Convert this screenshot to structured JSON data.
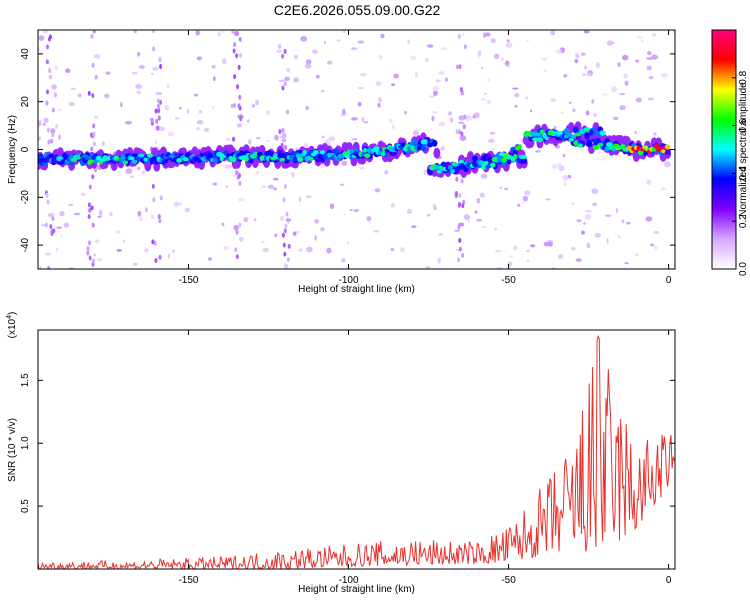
{
  "title": "C2E6.2026.055.09.00.G22",
  "chart_data": [
    {
      "type": "heatmap",
      "xlabel": "Height of straight line (km)",
      "ylabel": "Frequency (Hz)",
      "xlim": [
        -197,
        2
      ],
      "ylim": [
        -50,
        50
      ],
      "xticks": [
        -150,
        -100,
        -50,
        0
      ],
      "yticks": [
        -40,
        -20,
        0,
        20,
        40
      ],
      "colorbar": {
        "label": "Normalized spectral amplitude",
        "range": [
          0,
          1
        ],
        "ticks": [
          "0.0",
          "0.2",
          "0.4",
          "0.6",
          "0.8"
        ],
        "tick_values": [
          0.0,
          0.2,
          0.4,
          0.6,
          0.8
        ],
        "colors": [
          "#ffffff",
          "#d6a8ff",
          "#8000ff",
          "#0000ff",
          "#00ffff",
          "#00ff00",
          "#ffff00",
          "#ff0000",
          "#ff0080"
        ]
      },
      "ridge": [
        {
          "x": -197,
          "y": -4,
          "amp": 0.35
        },
        {
          "x": -180,
          "y": -4,
          "amp": 0.55
        },
        {
          "x": -160,
          "y": -4,
          "amp": 0.45
        },
        {
          "x": -140,
          "y": -3,
          "amp": 0.45
        },
        {
          "x": -120,
          "y": -3,
          "amp": 0.5
        },
        {
          "x": -100,
          "y": -2,
          "amp": 0.5
        },
        {
          "x": -85,
          "y": 0,
          "amp": 0.5
        },
        {
          "x": -73,
          "y": 3,
          "amp": 0.5
        },
        {
          "x": -72,
          "y": -9,
          "amp": 0.5
        },
        {
          "x": -60,
          "y": -5,
          "amp": 0.45
        },
        {
          "x": -50,
          "y": -3,
          "amp": 0.6
        },
        {
          "x": -40,
          "y": 8,
          "amp": 0.5
        },
        {
          "x": -30,
          "y": 3,
          "amp": 0.5
        },
        {
          "x": -20,
          "y": 2,
          "amp": 0.55
        },
        {
          "x": -10,
          "y": 0,
          "amp": 0.8
        },
        {
          "x": 0,
          "y": 0,
          "amp": 0.85
        }
      ]
    },
    {
      "type": "line",
      "xlabel": "Height of straight line (km)",
      "ylabel": "SNR (10 * v/v)",
      "unit_label": "(x10",
      "unit_exp": "4",
      "unit_close": ")",
      "xlim": [
        -197,
        2
      ],
      "ylim": [
        0,
        1.9
      ],
      "xticks": [
        -150,
        -100,
        -50,
        0
      ],
      "yticks": [
        "0.5",
        "1.0",
        "1.5"
      ],
      "ytick_values": [
        0.5,
        1.0,
        1.5
      ],
      "series": [
        {
          "color": "#e8302e",
          "envelope": [
            {
              "x": -197,
              "lo": 0.0,
              "hi": 0.06
            },
            {
              "x": -170,
              "lo": 0.0,
              "hi": 0.07
            },
            {
              "x": -140,
              "lo": 0.0,
              "hi": 0.1
            },
            {
              "x": -120,
              "lo": 0.0,
              "hi": 0.16
            },
            {
              "x": -100,
              "lo": 0.02,
              "hi": 0.2
            },
            {
              "x": -80,
              "lo": 0.03,
              "hi": 0.25
            },
            {
              "x": -60,
              "lo": 0.04,
              "hi": 0.22
            },
            {
              "x": -50,
              "lo": 0.05,
              "hi": 0.35
            },
            {
              "x": -40,
              "lo": 0.1,
              "hi": 0.65
            },
            {
              "x": -30,
              "lo": 0.15,
              "hi": 1.05
            },
            {
              "x": -22,
              "lo": 0.1,
              "hi": 1.85
            },
            {
              "x": -10,
              "lo": 0.3,
              "hi": 1.05
            },
            {
              "x": 0,
              "lo": 0.65,
              "hi": 1.1
            },
            {
              "x": 2,
              "lo": 0.75,
              "hi": 1.08
            }
          ]
        }
      ]
    }
  ]
}
